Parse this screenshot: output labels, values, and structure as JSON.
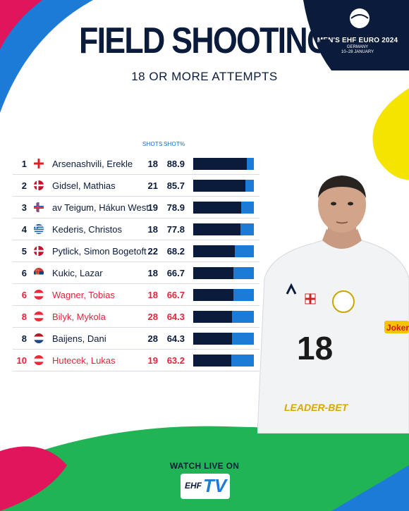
{
  "header": {
    "title": "FIELD SHOOTING",
    "subtitle": "18 OR MORE ATTEMPTS",
    "event_title": "MEN'S EHF EURO 2024",
    "event_line1": "GERMANY",
    "event_line2": "10–28 JANUARY"
  },
  "columns": {
    "shots": "SHOTS",
    "pct": "SHOT%"
  },
  "colors": {
    "navy": "#0b1b3b",
    "blue": "#1d7bd8",
    "highlight_red": "#e5243b",
    "green": "#20b455",
    "pink": "#e0155b",
    "yellow": "#f5e400"
  },
  "players": [
    {
      "rank": "1",
      "flag": "georgia-flag",
      "name": "Arsenashvili, Erekle",
      "shots": "18",
      "pct": "88.9",
      "value": 88.9,
      "highlight": false
    },
    {
      "rank": "2",
      "flag": "denmark-flag",
      "name": "Gidsel, Mathias",
      "shots": "21",
      "pct": "85.7",
      "value": 85.7,
      "highlight": false
    },
    {
      "rank": "3",
      "flag": "faroe-islands-flag",
      "name": "av Teigum, Hákun West",
      "shots": "19",
      "pct": "78.9",
      "value": 78.9,
      "highlight": false
    },
    {
      "rank": "4",
      "flag": "greece-flag",
      "name": "Kederis, Christos",
      "shots": "18",
      "pct": "77.8",
      "value": 77.8,
      "highlight": false
    },
    {
      "rank": "5",
      "flag": "denmark-flag",
      "name": "Pytlick, Simon Bogetoft",
      "shots": "22",
      "pct": "68.2",
      "value": 68.2,
      "highlight": false
    },
    {
      "rank": "6",
      "flag": "serbia-flag",
      "name": "Kukic, Lazar",
      "shots": "18",
      "pct": "66.7",
      "value": 66.7,
      "highlight": false
    },
    {
      "rank": "6",
      "flag": "austria-flag",
      "name": "Wagner, Tobias",
      "shots": "18",
      "pct": "66.7",
      "value": 66.7,
      "highlight": true
    },
    {
      "rank": "8",
      "flag": "austria-flag",
      "name": "Bilyk, Mykola",
      "shots": "28",
      "pct": "64.3",
      "value": 64.3,
      "highlight": true
    },
    {
      "rank": "8",
      "flag": "netherlands-flag",
      "name": "Baijens, Dani",
      "shots": "28",
      "pct": "64.3",
      "value": 64.3,
      "highlight": false
    },
    {
      "rank": "10",
      "flag": "austria-flag",
      "name": "Hutecek, Lukas",
      "shots": "19",
      "pct": "63.2",
      "value": 63.2,
      "highlight": true
    }
  ],
  "jersey": {
    "number": "18",
    "sponsor": "LEADER-BET",
    "patch": "Joker"
  },
  "footer": {
    "watch_label": "WATCH LIVE ON",
    "logo_ehf": "EHF",
    "logo_tv": "TV"
  }
}
